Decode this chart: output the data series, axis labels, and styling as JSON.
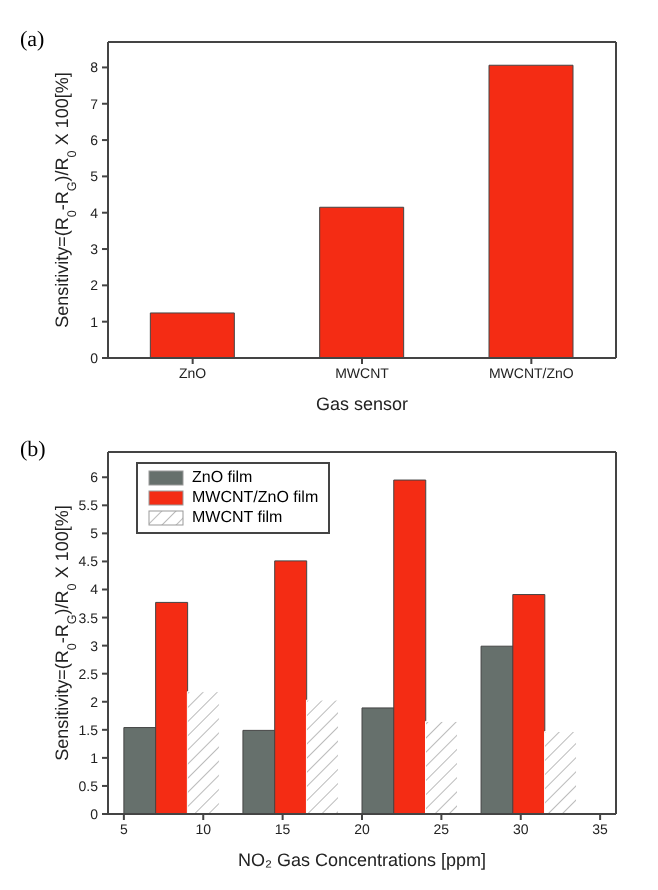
{
  "chart_data": [
    {
      "type": "bar",
      "title": "(a)",
      "xlabel": "Gas sensor",
      "ylabel": "Sensitivity=(R$_{0}$-R$_{G}$)/R$_{0}$ X 100[%]",
      "categories": [
        "ZnO",
        "MWCNT",
        "MWCNT/ZnO"
      ],
      "values": [
        1.24,
        4.15,
        8.06
      ],
      "color": "#f42c14",
      "ylim": [
        0,
        8.7
      ],
      "yticks": [
        0,
        1,
        2,
        3,
        4,
        5,
        6,
        7,
        8
      ],
      "grid": false
    },
    {
      "type": "bar",
      "title": "(b)",
      "xlabel": "NO₂ Gas Concentrations [ppm]",
      "ylabel": "Sensitivity=(R$_{0}$-R$_{G}$)/R$_{0}$ X 100[%]",
      "series": [
        {
          "name": "ZnO film",
          "color": "#66706c",
          "x": [
            6,
            13.5,
            21,
            28.5
          ],
          "values": [
            1.54,
            1.49,
            1.89,
            2.99
          ]
        },
        {
          "name": "MWCNT/ZnO film",
          "color": "#f42c14",
          "x": [
            8,
            15.5,
            23,
            30.5
          ],
          "values": [
            3.77,
            4.51,
            5.95,
            3.91
          ]
        },
        {
          "name": "MWCNT film",
          "color": "#ffffff",
          "x": [
            10,
            17.5,
            25,
            32.5
          ],
          "values": [
            2.18,
            2.03,
            1.65,
            1.47
          ]
        }
      ],
      "xlim": [
        4,
        36
      ],
      "xticks": [
        5,
        10,
        15,
        20,
        25,
        30,
        35
      ],
      "ylim": [
        0,
        6.45
      ],
      "yticks": [
        0,
        0.5,
        1,
        1.5,
        2,
        2.5,
        3,
        3.5,
        4,
        4.5,
        5,
        5.5,
        6
      ],
      "grid": false,
      "legend": "top left"
    }
  ]
}
